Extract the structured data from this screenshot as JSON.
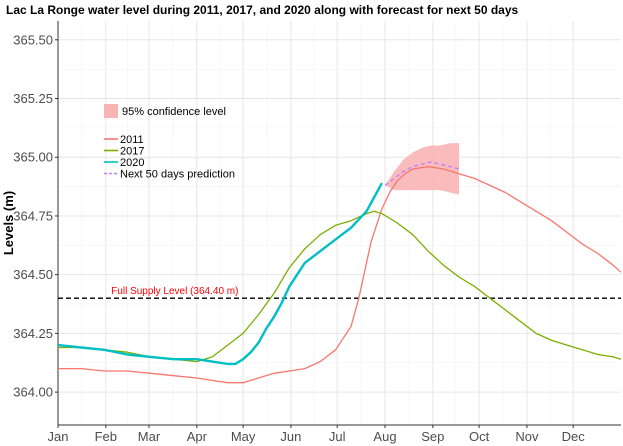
{
  "chart_data": {
    "type": "line",
    "title": "Lac La Ronge water level during 2011, 2017, and 2020 along with forecast for next 50 days",
    "xlabel": "",
    "ylabel": "Levels (m)",
    "xlim": [
      0,
      365
    ],
    "ylim": [
      363.86,
      365.58
    ],
    "x_ticks": [
      {
        "label": "Jan",
        "day": 0
      },
      {
        "label": "Feb",
        "day": 31
      },
      {
        "label": "Mar",
        "day": 59
      },
      {
        "label": "Apr",
        "day": 90
      },
      {
        "label": "May",
        "day": 120
      },
      {
        "label": "Jun",
        "day": 151
      },
      {
        "label": "Jul",
        "day": 181
      },
      {
        "label": "Aug",
        "day": 212
      },
      {
        "label": "Sep",
        "day": 243
      },
      {
        "label": "Oct",
        "day": 273
      },
      {
        "label": "Nov",
        "day": 304
      },
      {
        "label": "Dec",
        "day": 334
      }
    ],
    "y_ticks": [
      364.0,
      364.25,
      364.5,
      364.75,
      365.0,
      365.25,
      365.5
    ],
    "y_tick_labels": [
      "364.00",
      "364.25",
      "364.50",
      "364.75",
      "365.00",
      "365.25",
      "365.50"
    ],
    "grid": true,
    "legend_position": "top-left",
    "confidence_band": {
      "label": "95% confidence level",
      "color": "#f8b4b4",
      "x": [
        212,
        218,
        224,
        230,
        236,
        242,
        248,
        254,
        260
      ],
      "lower": [
        364.88,
        364.86,
        364.86,
        364.86,
        364.86,
        364.86,
        364.86,
        364.85,
        364.84
      ],
      "upper": [
        364.88,
        364.94,
        364.99,
        365.02,
        365.04,
        365.05,
        365.05,
        365.06,
        365.06
      ]
    },
    "reference_line": {
      "label": "Full Supply Level (364.40 m)",
      "y": 364.4,
      "color": "#000000"
    },
    "series": [
      {
        "name": "2011",
        "color": "#f8766d",
        "x": [
          0,
          15,
          30,
          45,
          60,
          75,
          90,
          100,
          110,
          120,
          130,
          140,
          150,
          160,
          170,
          180,
          190,
          195,
          200,
          203,
          206,
          210,
          215,
          220,
          225,
          230,
          240,
          250,
          260,
          270,
          280,
          290,
          300,
          310,
          320,
          330,
          340,
          350,
          360,
          365
        ],
        "y": [
          364.1,
          364.1,
          364.09,
          364.09,
          364.08,
          364.07,
          364.06,
          364.05,
          364.04,
          364.04,
          364.06,
          364.08,
          364.09,
          364.1,
          364.13,
          364.18,
          364.28,
          364.4,
          364.55,
          364.64,
          364.7,
          364.78,
          364.85,
          364.9,
          364.93,
          364.95,
          364.96,
          364.95,
          364.93,
          364.91,
          364.88,
          364.85,
          364.81,
          364.77,
          364.73,
          364.68,
          364.63,
          364.59,
          364.54,
          364.51
        ]
      },
      {
        "name": "2017",
        "color": "#7cae00",
        "x": [
          0,
          15,
          30,
          45,
          60,
          75,
          90,
          100,
          110,
          120,
          130,
          140,
          150,
          160,
          170,
          180,
          190,
          200,
          205,
          210,
          220,
          230,
          240,
          250,
          260,
          270,
          280,
          290,
          300,
          310,
          320,
          330,
          340,
          350,
          360,
          365
        ],
        "y": [
          364.19,
          364.19,
          364.18,
          364.17,
          364.15,
          364.14,
          364.13,
          364.15,
          364.2,
          364.25,
          364.33,
          364.42,
          364.53,
          364.61,
          364.67,
          364.71,
          364.73,
          364.76,
          364.77,
          364.76,
          364.72,
          364.67,
          364.6,
          364.54,
          364.49,
          364.45,
          364.4,
          364.35,
          364.3,
          364.25,
          364.22,
          364.2,
          364.18,
          364.16,
          364.15,
          364.14
        ]
      },
      {
        "name": "2020",
        "color": "#00bfc4",
        "x": [
          0,
          15,
          30,
          45,
          60,
          75,
          90,
          100,
          110,
          115,
          120,
          125,
          130,
          135,
          140,
          145,
          150,
          155,
          160,
          170,
          180,
          190,
          200,
          205,
          210
        ],
        "y": [
          364.2,
          364.19,
          364.18,
          364.16,
          364.15,
          364.14,
          364.14,
          364.13,
          364.12,
          364.12,
          364.14,
          364.17,
          364.21,
          364.27,
          364.32,
          364.38,
          364.45,
          364.5,
          364.55,
          364.6,
          364.65,
          364.7,
          364.77,
          364.83,
          364.89
        ]
      },
      {
        "name": "Next 50 days prediction",
        "color": "#c77cff",
        "dashed": true,
        "x": [
          212,
          218,
          224,
          230,
          236,
          242,
          248,
          254,
          260
        ],
        "y": [
          364.88,
          364.91,
          364.94,
          364.96,
          364.97,
          364.98,
          364.97,
          364.96,
          364.95
        ]
      }
    ]
  }
}
